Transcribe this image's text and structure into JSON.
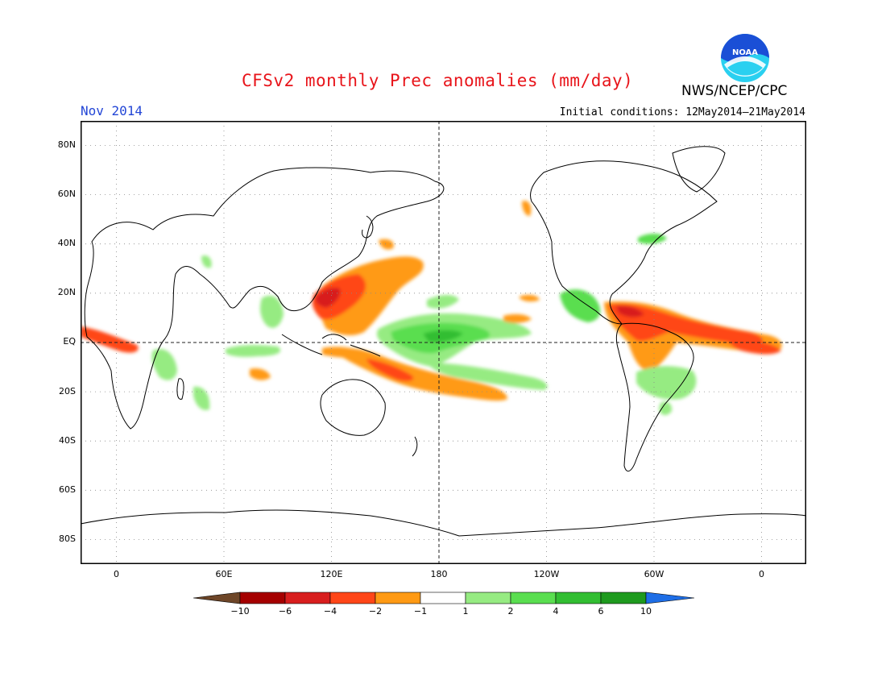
{
  "header": {
    "title": "CFSv2 monthly Prec anomalies (mm/day)",
    "agency": "NWS/NCEP/CPC",
    "month": "Nov 2014",
    "initial_conditions": "Initial conditions: 12May2014–21May2014",
    "logo_text": "NOAA"
  },
  "map": {
    "projection": "equirectangular",
    "lon_range": [
      -20,
      385
    ],
    "lat_range": [
      -90,
      90
    ],
    "lat_labels": [
      {
        "lat": 80,
        "label": "80N"
      },
      {
        "lat": 60,
        "label": "60N"
      },
      {
        "lat": 40,
        "label": "40N"
      },
      {
        "lat": 20,
        "label": "20N"
      },
      {
        "lat": 0,
        "label": "EQ"
      },
      {
        "lat": -20,
        "label": "20S"
      },
      {
        "lat": -40,
        "label": "40S"
      },
      {
        "lat": -60,
        "label": "60S"
      },
      {
        "lat": -80,
        "label": "80S"
      }
    ],
    "lon_labels": [
      {
        "lon": 0,
        "label": "0"
      },
      {
        "lon": 60,
        "label": "60E"
      },
      {
        "lon": 120,
        "label": "120E"
      },
      {
        "lon": 180,
        "label": "180"
      },
      {
        "lon": 240,
        "label": "120W"
      },
      {
        "lon": 300,
        "label": "60W"
      },
      {
        "lon": 360,
        "label": "0"
      }
    ],
    "grid": "dotted",
    "reference_lines": "equator and dateline dashed",
    "anomaly_regions": [
      {
        "name": "Maritime Continent / Philippines dry",
        "lon": 130,
        "lat": 12,
        "category": -4
      },
      {
        "name": "West Pacific dry core",
        "lon": 126,
        "lat": 15,
        "category": -6
      },
      {
        "name": "NW Pacific dry band",
        "lon": 150,
        "lat": 22,
        "category": -2
      },
      {
        "name": "Equatorial central Pacific wet",
        "lon": 178,
        "lat": 3,
        "category": 4
      },
      {
        "name": "SPCZ dry band",
        "lon": 170,
        "lat": -12,
        "category": -4
      },
      {
        "name": "South Pacific dry extension",
        "lon": 200,
        "lat": -18,
        "category": -2
      },
      {
        "name": "Central America wet",
        "lon": 275,
        "lat": 15,
        "category": 2
      },
      {
        "name": "Atlantic ITCZ dry",
        "lon": 325,
        "lat": 8,
        "category": -4
      },
      {
        "name": "Northern South America dry",
        "lon": 295,
        "lat": 3,
        "category": -4
      },
      {
        "name": "Central South America wet",
        "lon": 305,
        "lat": -15,
        "category": 2
      },
      {
        "name": "Eastern Atlantic dry",
        "lon": 0,
        "lat": 2,
        "category": -4
      },
      {
        "name": "East Africa wet",
        "lon": 35,
        "lat": -8,
        "category": 2
      },
      {
        "name": "Equatorial Indian Ocean wet",
        "lon": 85,
        "lat": -2,
        "category": 2
      },
      {
        "name": "North Atlantic wet",
        "lon": 300,
        "lat": 42,
        "category": 2
      }
    ]
  },
  "legend": {
    "colors": [
      "#6e4628",
      "#a50000",
      "#d81e1e",
      "#ff4618",
      "#ff9a14",
      "#ffffff",
      "#96eb82",
      "#5ade50",
      "#32be32",
      "#1e9a1e",
      "#1e6ee6"
    ],
    "labels": [
      "−10",
      "−6",
      "−4",
      "−2",
      "−1",
      "1",
      "2",
      "4",
      "6",
      "10"
    ]
  },
  "colors": {
    "title": "#e8141a",
    "month": "#2346d6",
    "logo_blue": "#1a4fd6",
    "logo_cyan": "#2ad0f0"
  }
}
